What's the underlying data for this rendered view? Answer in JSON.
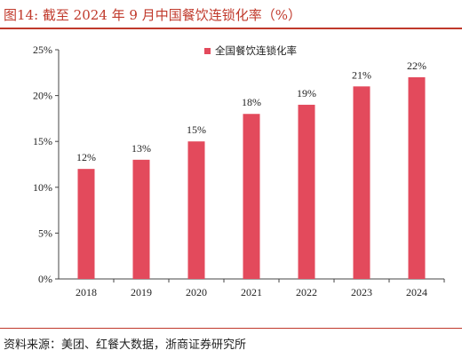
{
  "header": {
    "title": "图14:   截至 2024 年 9 月中国餐饮连锁化率（%）"
  },
  "footer": {
    "source": "资料来源：美团、红餐大数据，浙商证券研究所"
  },
  "chart_data": {
    "type": "bar",
    "categories": [
      "2018",
      "2019",
      "2020",
      "2021",
      "2022",
      "2023",
      "2024"
    ],
    "series": [
      {
        "name": "全国餐饮连锁化率",
        "values": [
          12,
          13,
          15,
          18,
          19,
          21,
          22
        ]
      }
    ],
    "data_labels": [
      "12%",
      "13%",
      "15%",
      "18%",
      "19%",
      "21%",
      "22%"
    ],
    "y_ticks": [
      "0%",
      "5%",
      "10%",
      "15%",
      "20%",
      "25%"
    ],
    "ylim": [
      0,
      25
    ],
    "grid": false,
    "legend_position": "top-center",
    "bar_color": "#e34a5c"
  }
}
